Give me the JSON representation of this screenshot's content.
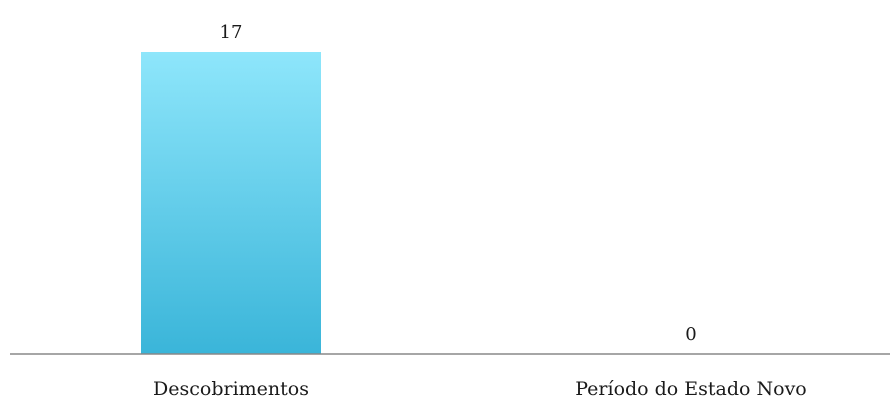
{
  "chart_data": {
    "type": "bar",
    "categories": [
      "Descobrimentos",
      "Período do Estado Novo"
    ],
    "values": [
      17,
      0
    ],
    "data_labels": [
      "17",
      "0"
    ],
    "title": "",
    "xlabel": "",
    "ylabel": "",
    "ylim": [
      0,
      17
    ],
    "grid": false,
    "legend": "none",
    "colors": {
      "bar_top": "#8ee6fb",
      "bar_bottom": "#3ab5d9",
      "axis": "#888888",
      "text": "#1a1a1a"
    }
  }
}
